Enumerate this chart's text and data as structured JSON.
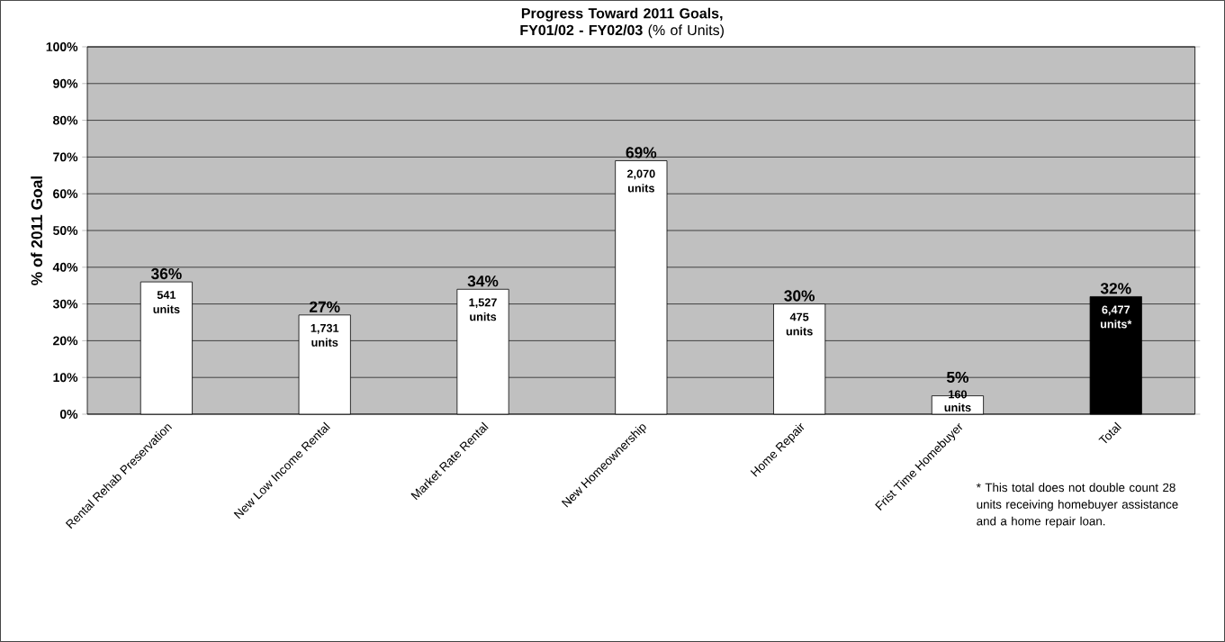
{
  "chart_data": {
    "type": "bar",
    "title": "**Progress Toward 2011 Goals, FY01/02 - FY02/03** (% of Units)",
    "ylabel": "% of 2011 Goal",
    "categories": [
      "Rental Rehab Preservation",
      "New Low Income Rental",
      "Market Rate Rental",
      "New Homeownership",
      "Home Repair",
      "Frist Time Homebuyer",
      "Total"
    ],
    "values": [
      36,
      27,
      34,
      69,
      30,
      5,
      32
    ],
    "value_labels": [
      "36%",
      "27%",
      "34%",
      "69%",
      "30%",
      "5%",
      "32%"
    ],
    "colors": [
      "#ffffff",
      "#ffffff",
      "#ffffff",
      "#ffffff",
      "#ffffff",
      "#ffffff",
      "#000000"
    ],
    "ylim": [
      0,
      100
    ],
    "yticks": [
      {
        "value": 0,
        "label": "0%"
      },
      {
        "value": 10,
        "label": "10%"
      },
      {
        "value": 20,
        "label": "20%"
      },
      {
        "value": 30,
        "label": "30%"
      },
      {
        "value": 40,
        "label": "40%"
      },
      {
        "value": 50,
        "label": "50%"
      },
      {
        "value": 60,
        "label": "60%"
      },
      {
        "value": 70,
        "label": "70%"
      },
      {
        "value": 80,
        "label": "80%"
      },
      {
        "value": 90,
        "label": "90%"
      },
      {
        "value": 100,
        "label": "100%"
      }
    ],
    "grid": "y",
    "annotations": [
      "541 units",
      "1,731 units",
      "1,527 units",
      "2,070 units",
      "475 units",
      "160 units",
      "6,477 units*",
      "* This total does not double count 28 units receiving homebuyer assistance and a home repair loan."
    ]
  }
}
